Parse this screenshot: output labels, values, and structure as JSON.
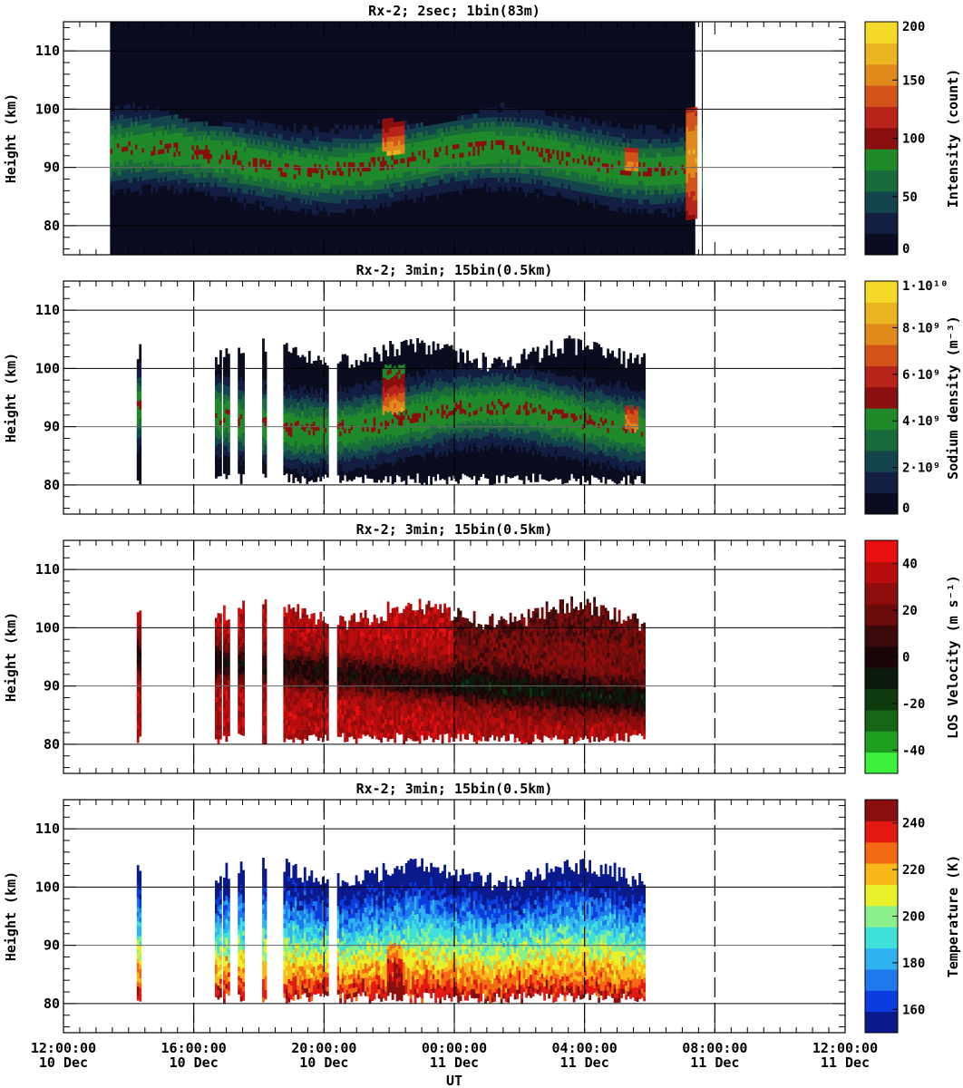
{
  "colors": {
    "intensity": [
      "#0a0c1f",
      "#121e42",
      "#14454c",
      "#1a6b3c",
      "#1f8a2a",
      "#8b0e0e",
      "#b8231a",
      "#d2541b",
      "#e08a1c",
      "#eab51f",
      "#f4d82a"
    ],
    "density": [
      "#0a0c1f",
      "#121e42",
      "#14454c",
      "#1a6b3c",
      "#1f8a2a",
      "#8b0e0e",
      "#b8231a",
      "#d2541b",
      "#e08a1c",
      "#eab51f",
      "#f4d82a"
    ],
    "velocity": [
      "#3ef03e",
      "#1f9f1f",
      "#166616",
      "#0e3a0e",
      "#0b1a0b",
      "#1a0606",
      "#3a0a0a",
      "#6a0c0c",
      "#8e0c0c",
      "#b80d0d",
      "#e81010"
    ],
    "temperature": [
      "#0a1a8c",
      "#0b3ce0",
      "#1f78ec",
      "#2fb2f0",
      "#3fe0d8",
      "#8cf08a",
      "#e8f02a",
      "#f8b81a",
      "#f46a14",
      "#e41a12",
      "#8a1010"
    ]
  },
  "chart_data": [
    {
      "type": "heatmap",
      "title": "Rx-2;  2sec; 1bin(83m)",
      "ylabel": "Height (km)",
      "ylim": [
        75,
        115
      ],
      "yticks": [
        "80",
        "90",
        "100",
        "110"
      ],
      "xlim_hours_from_12UT_10Dec": [
        0,
        24
      ],
      "colorbar_label": "Intensity (count)",
      "colorbar_ticks": [
        "0",
        "50",
        "100",
        "150",
        "200"
      ],
      "colorbar_range": [
        0,
        200
      ],
      "palette": "intensity",
      "coverage": [
        [
          1.43,
          19.4
        ],
        [
          19.6,
          19.75
        ]
      ]
    },
    {
      "type": "heatmap",
      "title": "Rx-2; 3min; 15bin(0.5km)",
      "ylabel": "Height (km)",
      "ylim": [
        75,
        115
      ],
      "yticks": [
        "80",
        "90",
        "100",
        "110"
      ],
      "xlim_hours_from_12UT_10Dec": [
        0,
        24
      ],
      "colorbar_label": "Sodium density (m⁻³)",
      "colorbar_ticks": [
        "0",
        "2·10⁹",
        "4·10⁹",
        "6·10⁹",
        "8·10⁹",
        "1·10¹⁰"
      ],
      "colorbar_range": [
        0,
        10000000000
      ],
      "palette": "density",
      "coverage": [
        [
          2.25,
          2.35
        ],
        [
          4.65,
          4.8
        ],
        [
          4.9,
          5.05
        ],
        [
          5.35,
          5.5
        ],
        [
          6.1,
          6.2
        ],
        [
          6.75,
          8.1
        ],
        [
          8.4,
          17.85
        ]
      ]
    },
    {
      "type": "heatmap",
      "title": "Rx-2; 3min; 15bin(0.5km)",
      "ylabel": "Height (km)",
      "ylim": [
        75,
        115
      ],
      "yticks": [
        "80",
        "90",
        "100",
        "110"
      ],
      "xlim_hours_from_12UT_10Dec": [
        0,
        24
      ],
      "colorbar_label": "LOS Velocity (m s⁻¹)",
      "colorbar_ticks": [
        "-40",
        "-20",
        "0",
        "20",
        "40"
      ],
      "colorbar_range": [
        -50,
        50
      ],
      "palette": "velocity",
      "coverage": [
        [
          2.25,
          2.35
        ],
        [
          4.65,
          4.8
        ],
        [
          4.9,
          5.05
        ],
        [
          5.35,
          5.5
        ],
        [
          6.1,
          6.2
        ],
        [
          6.75,
          8.1
        ],
        [
          8.4,
          17.85
        ]
      ]
    },
    {
      "type": "heatmap",
      "title": "Rx-2; 3min; 15bin(0.5km)",
      "ylabel": "Height (km)",
      "ylim": [
        75,
        115
      ],
      "yticks": [
        "80",
        "90",
        "100",
        "110"
      ],
      "xlim_hours_from_12UT_10Dec": [
        0,
        24
      ],
      "colorbar_label": "Temperature (K)",
      "colorbar_ticks": [
        "160",
        "180",
        "200",
        "220",
        "240"
      ],
      "colorbar_range": [
        150,
        250
      ],
      "palette": "temperature",
      "coverage": [
        [
          2.25,
          2.35
        ],
        [
          4.65,
          4.8
        ],
        [
          4.9,
          5.05
        ],
        [
          5.35,
          5.5
        ],
        [
          6.1,
          6.2
        ],
        [
          6.75,
          8.1
        ],
        [
          8.4,
          17.85
        ]
      ]
    }
  ],
  "xaxis": {
    "label": "UT",
    "ticks": [
      {
        "hour": 0,
        "time": "12:00:00",
        "date": "10 Dec"
      },
      {
        "hour": 4,
        "time": "16:00:00",
        "date": "10 Dec"
      },
      {
        "hour": 8,
        "time": "20:00:00",
        "date": "10 Dec"
      },
      {
        "hour": 12,
        "time": "00:00:00",
        "date": "11 Dec"
      },
      {
        "hour": 16,
        "time": "04:00:00",
        "date": "11 Dec"
      },
      {
        "hour": 20,
        "time": "08:00:00",
        "date": "11 Dec"
      },
      {
        "hour": 24,
        "time": "12:00:00",
        "date": "11 Dec"
      }
    ]
  }
}
